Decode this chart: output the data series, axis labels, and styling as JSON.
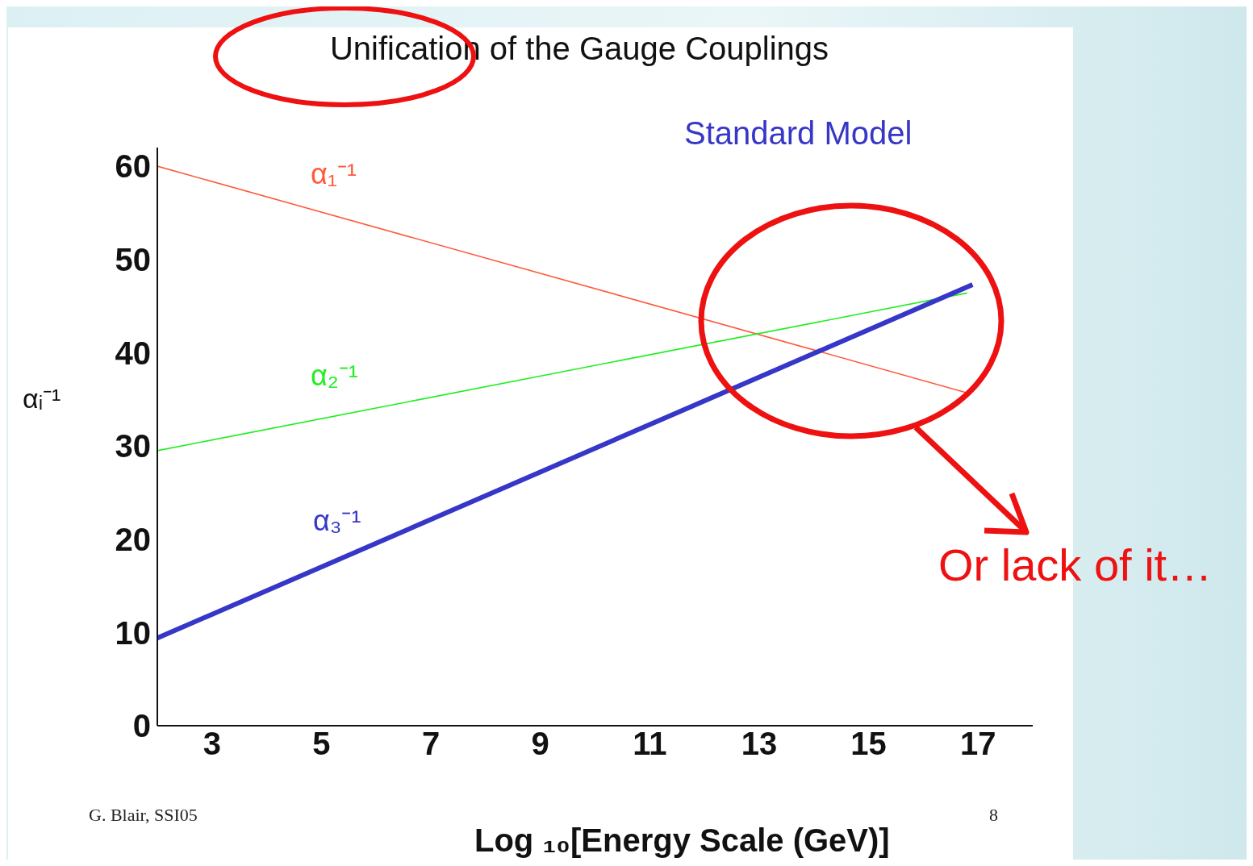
{
  "chart_data": {
    "type": "line",
    "title": "Unification of the Gauge Couplings",
    "xlabel": "Log ₁₀[Energy Scale (GeV)]",
    "ylabel": "αᵢ⁻¹",
    "xlim": [
      2,
      18
    ],
    "xticks": [
      3,
      5,
      7,
      9,
      11,
      13,
      15,
      17
    ],
    "ylim": [
      0,
      62
    ],
    "yticks": [
      0,
      10,
      20,
      30,
      40,
      50,
      60
    ],
    "grid": false,
    "legend": false,
    "marker": "none",
    "line_style": "solid",
    "series": [
      {
        "name": "α₁⁻¹",
        "color": "#ff5a3c",
        "x": [
          2,
          16.8
        ],
        "values": [
          60,
          35.7
        ]
      },
      {
        "name": "α₂⁻¹",
        "color": "#22ee22",
        "x": [
          2,
          16.8
        ],
        "values": [
          29.5,
          46.4
        ]
      },
      {
        "name": "α₃⁻¹",
        "color": "#3636c8",
        "x": [
          2,
          16.9
        ],
        "values": [
          9.4,
          47.3
        ]
      }
    ],
    "annotations": [
      "Standard Model",
      "Or lack of it…",
      "G. Blair, SSI05",
      "8"
    ]
  }
}
